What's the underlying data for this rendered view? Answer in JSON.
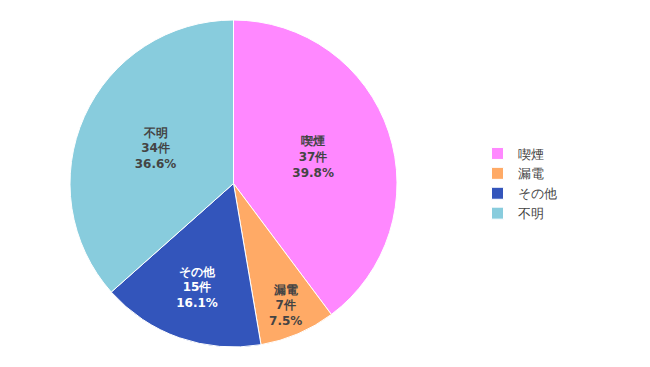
{
  "chart_data": {
    "type": "pie",
    "categories": [
      "喫煙",
      "漏電",
      "その他",
      "不明"
    ],
    "values": [
      37,
      7,
      15,
      34
    ],
    "value_labels": [
      "37件\n39.8%",
      "7件\n7.5%",
      "15件\n16.1%",
      "34件\n36.6%"
    ],
    "colors": [
      "#FF88FF",
      "#FFAA66",
      "#3355BB",
      "#88CCDD"
    ],
    "data_labels": true,
    "legend": "right"
  }
}
